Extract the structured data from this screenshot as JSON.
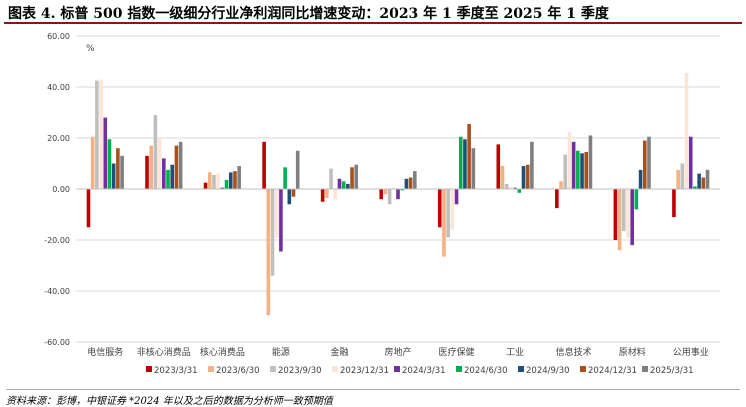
{
  "title": "图表 4. 标普 500 指数一级细分行业净利润同比增速变动：2023 年 1 季度至 2025 年 1 季度",
  "source": "资料来源：彭博，中银证券 *2024 年以及之后的数据为分析师一致预期值",
  "colors": [
    "#c00000",
    "#f4b183",
    "#bfbfbf",
    "#fbe5d6",
    "#7030a0",
    "#00b050",
    "#1f4e79",
    "#a5521f",
    "#7f7f7f"
  ],
  "chart_data": {
    "type": "bar",
    "unit_label": "%",
    "ylim": [
      -60,
      60
    ],
    "yticks": [
      60,
      40,
      20,
      0,
      -20,
      -40,
      -60
    ],
    "ytick_labels": [
      "60.00",
      "40.00",
      "20.00",
      "0.00",
      "-20.00",
      "-40.00",
      "-60.00"
    ],
    "legend_position": "bottom",
    "categories": [
      "电信服务",
      "非核心消费品",
      "核心消费品",
      "能源",
      "金融",
      "房地产",
      "医疗保健",
      "工业",
      "信息技术",
      "原材料",
      "公用事业"
    ],
    "series": [
      {
        "name": "2023/3/31",
        "values": [
          -15,
          13,
          2.5,
          18.5,
          -5,
          -4,
          -15,
          17.5,
          -7.5,
          -20,
          -11
        ]
      },
      {
        "name": "2023/6/30",
        "values": [
          20.5,
          17,
          6.5,
          -49.5,
          -3.5,
          -2,
          -26.5,
          9,
          3,
          -24,
          7.5
        ]
      },
      {
        "name": "2023/9/30",
        "values": [
          42.5,
          29,
          5.5,
          -34,
          8,
          -6,
          -19,
          2,
          13.5,
          -16.5,
          10
        ]
      },
      {
        "name": "2023/12/31",
        "values": [
          43,
          20,
          6,
          -19,
          -4,
          0.5,
          -16,
          1,
          22.5,
          -19,
          45.5
        ]
      },
      {
        "name": "2024/3/31",
        "values": [
          28,
          12,
          0.5,
          -24.5,
          4,
          -4,
          -6,
          0.5,
          18.5,
          -22,
          20.5
        ]
      },
      {
        "name": "2024/6/30",
        "values": [
          19.5,
          7.5,
          3.5,
          8.5,
          3,
          -0.5,
          20.5,
          -1.5,
          15,
          -8,
          1
        ]
      },
      {
        "name": "2024/9/30",
        "values": [
          10,
          9.5,
          6.5,
          -6,
          2,
          4,
          19.5,
          9,
          14,
          7.5,
          6
        ]
      },
      {
        "name": "2024/12/31",
        "values": [
          16,
          17,
          7,
          -3,
          8.5,
          4.5,
          25.5,
          9.5,
          14.5,
          19,
          4.5
        ]
      },
      {
        "name": "2025/3/31",
        "values": [
          13,
          18.5,
          9,
          15,
          9.5,
          7,
          16,
          18.5,
          21,
          20.5,
          7.5
        ]
      }
    ]
  }
}
